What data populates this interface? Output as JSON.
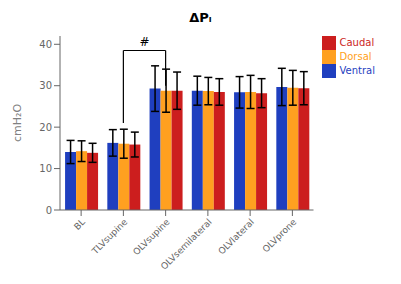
{
  "chart_data": {
    "type": "bar",
    "title": "ΔPₗ",
    "ylabel": "cmH₂O",
    "categories": [
      "BL",
      "TLVsupine",
      "OLVsupine",
      "OLVsemilateral",
      "OLVlateral",
      "OLVprone"
    ],
    "series": [
      {
        "name": "Ventral",
        "color": "#1F3FBF",
        "values": [
          14.0,
          16.2,
          29.3,
          28.8,
          28.4,
          29.7
        ],
        "errors": [
          2.8,
          3.2,
          5.5,
          3.5,
          3.8,
          4.5
        ]
      },
      {
        "name": "Dorsal",
        "color": "#FFA020",
        "values": [
          14.2,
          16.0,
          28.8,
          28.7,
          28.5,
          29.5
        ],
        "errors": [
          2.5,
          3.5,
          5.2,
          3.3,
          4.0,
          4.2
        ]
      },
      {
        "name": "Caudal",
        "color": "#CC1E1E",
        "values": [
          13.8,
          15.8,
          28.8,
          28.5,
          28.2,
          29.4
        ],
        "errors": [
          2.3,
          3.0,
          4.5,
          3.2,
          3.5,
          4.0
        ]
      }
    ],
    "ylim": [
      0,
      42
    ],
    "yticks": [
      0,
      10,
      20,
      30,
      40
    ],
    "grid": false,
    "legend": "upper right",
    "annotations": [
      {
        "text": "#",
        "x": [
          "TLVsupine",
          "OLVsupine"
        ],
        "y": 38.5,
        "y_ends": [
          21.0,
          30.0
        ]
      }
    ]
  }
}
